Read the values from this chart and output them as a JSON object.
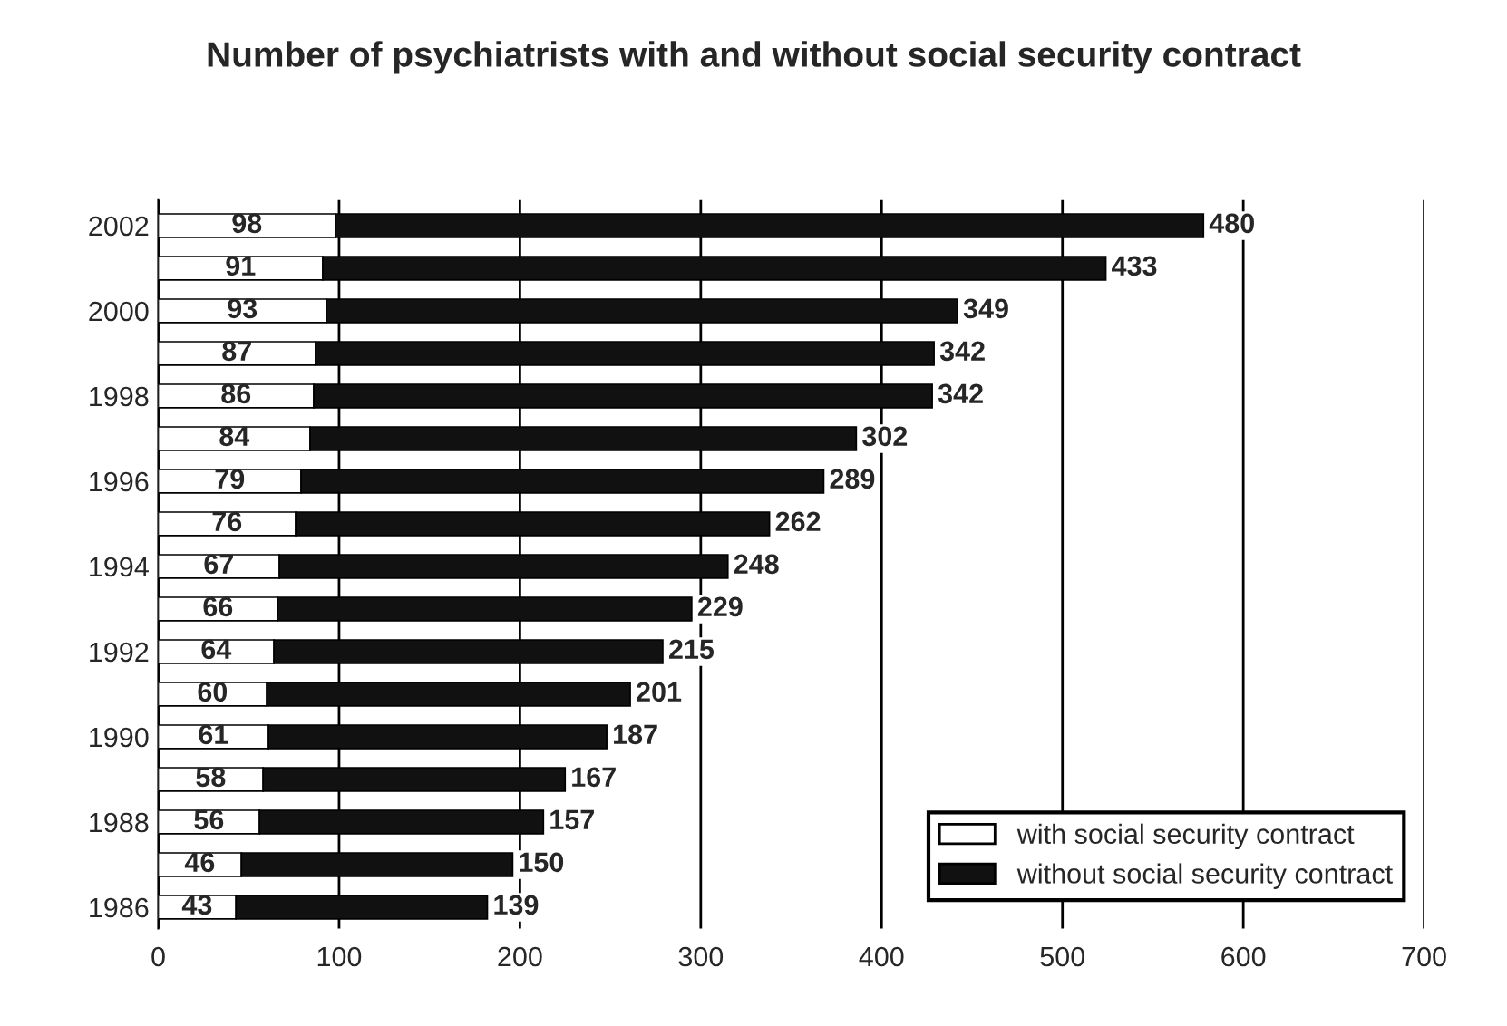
{
  "chart_data": {
    "type": "bar",
    "orientation": "horizontal",
    "stacked": true,
    "title": "Number of psychiatrists with and without social security contract",
    "categories": [
      "2002",
      null,
      "2000",
      null,
      "1998",
      null,
      "1996",
      null,
      "1994",
      null,
      "1992",
      null,
      "1990",
      null,
      "1988",
      null,
      "1986"
    ],
    "series": [
      {
        "name": "with social security contract",
        "color": "#ffffff",
        "values": [
          98,
          91,
          93,
          87,
          86,
          84,
          79,
          76,
          67,
          66,
          64,
          60,
          61,
          58,
          56,
          46,
          43
        ]
      },
      {
        "name": "without social security contract",
        "color": "#111111",
        "values": [
          480,
          433,
          349,
          342,
          342,
          302,
          289,
          262,
          248,
          229,
          215,
          201,
          187,
          167,
          157,
          150,
          139
        ]
      }
    ],
    "xlim": [
      0,
      700
    ],
    "xticks": [
      0,
      100,
      200,
      300,
      400,
      500,
      600,
      700
    ],
    "grid": "x",
    "legend": "bottom right",
    "data_labels": true
  }
}
